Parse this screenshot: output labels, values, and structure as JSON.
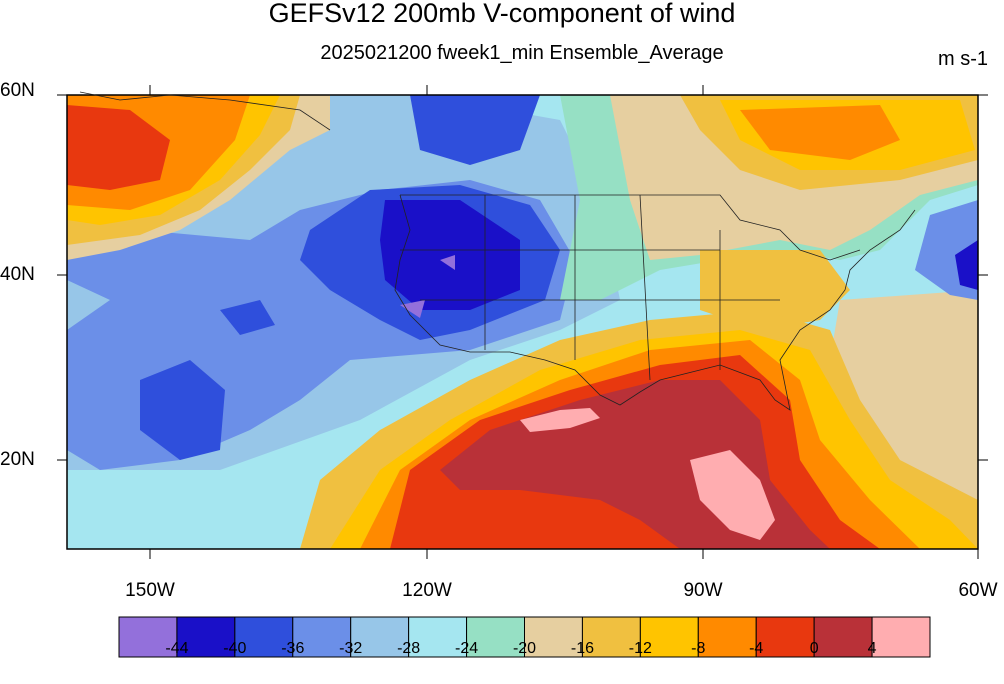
{
  "map": {
    "title": "GEFSv12 200mb V-component of wind",
    "subtitle": "2025021200 fweek1_min Ensemble_Average",
    "units": "m s-1",
    "lat_labels": [
      "60N",
      "40N",
      "20N"
    ],
    "lon_labels": [
      "150W",
      "120W",
      "90W",
      "60W"
    ]
  },
  "colorbar": {
    "colors": [
      "#9370db",
      "#1a10c8",
      "#2f4fdc",
      "#6b8fe8",
      "#97c6e8",
      "#a5e6f0",
      "#96e0c4",
      "#e6cfa0",
      "#f0c040",
      "#ffc400",
      "#ff8a00",
      "#e8380f",
      "#b93138",
      "#ffadb0"
    ],
    "labels": [
      "-44",
      "-40",
      "-36",
      "-32",
      "-28",
      "-24",
      "-20",
      "-16",
      "-12",
      "-8",
      "-4",
      "0",
      "4"
    ]
  }
}
